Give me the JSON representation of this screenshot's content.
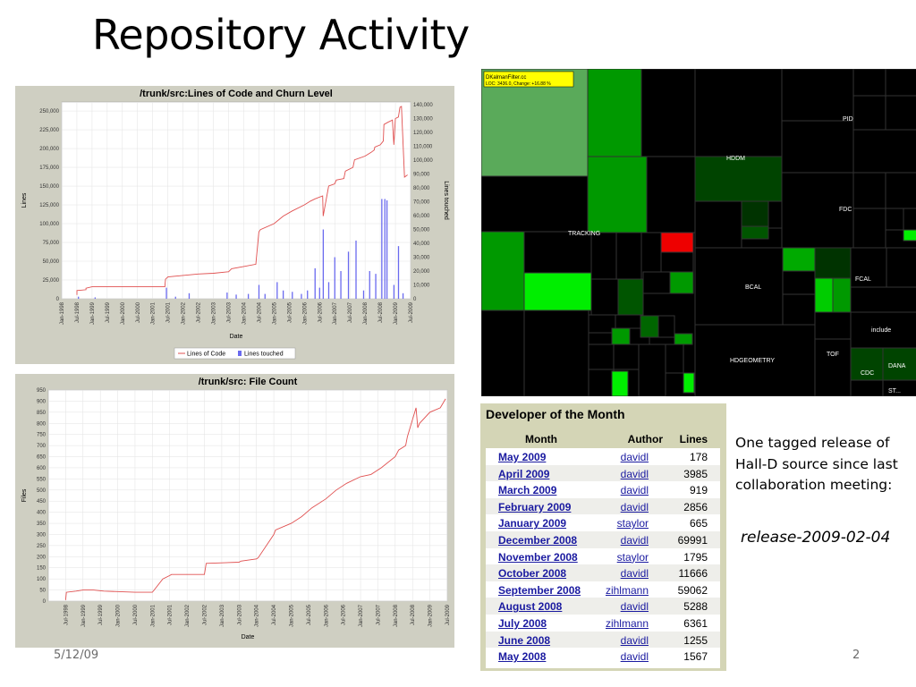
{
  "slide": {
    "title": "Repository Activity",
    "footer_date": "5/12/09",
    "page_number": "2",
    "note_text": "One tagged release of Hall-D source since last collaboration meeting:",
    "release_tag": "release-2009-02-04"
  },
  "colors": {
    "loc_line": "#e05050",
    "churn_bar": "#6a6aef",
    "treemap_green": "#00cc00",
    "treemap_red": "#ff0000",
    "link": "#1a1aa0"
  },
  "chart_data": [
    {
      "type": "line",
      "title": "/trunk/src:Lines of Code and Churn Level",
      "xlabel": "Date",
      "ylabel": "Lines",
      "ylabel_right": "Lines touched",
      "xlim": [
        1998.0,
        2009.5
      ],
      "ylim": [
        0,
        262000
      ],
      "ylim_right": [
        0,
        142000
      ],
      "y_ticks": [
        0,
        25000,
        50000,
        75000,
        100000,
        125000,
        150000,
        175000,
        200000,
        225000,
        250000
      ],
      "y_tick_labels": [
        "0",
        "25,000",
        "50,000",
        "75,000",
        "100,000",
        "125,000",
        "150,000",
        "175,000",
        "200,000",
        "225,000",
        "250,000"
      ],
      "y_right_ticks": [
        0,
        10000,
        20000,
        30000,
        40000,
        50000,
        60000,
        70000,
        80000,
        90000,
        100000,
        110000,
        120000,
        130000,
        140000
      ],
      "y_right_tick_labels": [
        "0",
        "10,000",
        "20,000",
        "30,000",
        "40,000",
        "50,000",
        "60,000",
        "70,000",
        "80,000",
        "90,000",
        "100,000",
        "110,000",
        "120,000",
        "130,000",
        "140,000"
      ],
      "x_ticks": [
        1998.0,
        1998.5,
        1999.0,
        1999.5,
        2000.0,
        2000.5,
        2001.0,
        2001.5,
        2002.0,
        2002.5,
        2003.0,
        2003.5,
        2004.0,
        2004.5,
        2005.0,
        2005.5,
        2006.0,
        2006.5,
        2007.0,
        2007.5,
        2008.0,
        2008.5,
        2009.0,
        2009.5
      ],
      "x_tick_labels": [
        "Jan-1998",
        "Jul-1998",
        "Jan-1999",
        "Jul-1999",
        "Jan-2000",
        "Jul-2000",
        "Jan-2001",
        "Jul-2001",
        "Jan-2002",
        "Jul-2002",
        "Jan-2003",
        "Jul-2003",
        "Jan-2004",
        "Jul-2004",
        "Jan-2005",
        "Jul-2005",
        "Jan-2006",
        "Jul-2006",
        "Jan-2007",
        "Jul-2007",
        "Jan-2008",
        "Jul-2008",
        "Jan-2009",
        "Jul-2009"
      ],
      "legend": [
        "Lines of Code",
        "Lines touched"
      ],
      "legend_position": "bottom",
      "grid": true,
      "series": [
        {
          "name": "Lines of Code",
          "x": [
            1998.5,
            1998.5,
            1998.8,
            1998.8,
            1999.0,
            1999.5,
            2000.5,
            2001.4,
            2001.42,
            2001.5,
            2002.5,
            2003.0,
            2003.5,
            2003.6,
            2004.0,
            2004.4,
            2004.5,
            2004.55,
            2005.0,
            2005.3,
            2005.6,
            2006.0,
            2006.2,
            2006.35,
            2006.6,
            2006.62,
            2006.8,
            2007.0,
            2007.05,
            2007.3,
            2007.35,
            2007.6,
            2007.65,
            2008.0,
            2008.2,
            2008.3,
            2008.32,
            2008.5,
            2008.6,
            2008.62,
            2008.75,
            2008.9,
            2008.95,
            2009.0,
            2009.1,
            2009.15,
            2009.2,
            2009.3,
            2009.4
          ],
          "y": [
            5000,
            11000,
            12000,
            14000,
            16000,
            16000,
            16000,
            16000,
            26000,
            29000,
            33000,
            34000,
            36000,
            40000,
            43000,
            46000,
            89000,
            92000,
            100000,
            110000,
            117000,
            125000,
            130000,
            133000,
            137000,
            110000,
            150000,
            153000,
            158000,
            160000,
            170000,
            175000,
            185000,
            190000,
            195000,
            198000,
            202000,
            205000,
            210000,
            232000,
            235000,
            238000,
            205000,
            240000,
            242000,
            255000,
            256000,
            162000,
            165000
          ]
        },
        {
          "name": "Lines touched",
          "type": "bar",
          "x": [
            1998.55,
            1999.1,
            2001.45,
            2001.75,
            2002.2,
            2003.45,
            2003.75,
            2004.15,
            2004.5,
            2004.7,
            2005.1,
            2005.3,
            2005.6,
            2005.9,
            2006.1,
            2006.35,
            2006.5,
            2006.62,
            2006.8,
            2007.0,
            2007.2,
            2007.45,
            2007.7,
            2007.95,
            2008.15,
            2008.35,
            2008.55,
            2008.65,
            2008.72,
            2008.95,
            2009.1,
            2009.25
          ],
          "y": [
            1500,
            1000,
            8000,
            1500,
            4000,
            4500,
            3000,
            3500,
            10000,
            3500,
            12000,
            6000,
            5000,
            3500,
            6000,
            22000,
            8000,
            50000,
            12000,
            30000,
            20000,
            34000,
            42000,
            6000,
            20000,
            18000,
            72000,
            72000,
            71000,
            10000,
            38000,
            4000
          ]
        }
      ]
    },
    {
      "type": "line",
      "title": "/trunk/src: File Count",
      "xlabel": "Date",
      "ylabel": "Files",
      "xlim": [
        1998.0,
        2009.5
      ],
      "ylim": [
        0,
        950
      ],
      "y_ticks": [
        0,
        50,
        100,
        150,
        200,
        250,
        300,
        350,
        400,
        450,
        500,
        550,
        600,
        650,
        700,
        750,
        800,
        850,
        900,
        950
      ],
      "y_tick_labels": [
        "0",
        "50",
        "100",
        "150",
        "200",
        "250",
        "300",
        "350",
        "400",
        "450",
        "500",
        "550",
        "600",
        "650",
        "700",
        "750",
        "800",
        "850",
        "900",
        "950"
      ],
      "x_ticks": [
        1998.5,
        1999.0,
        1999.5,
        2000.0,
        2000.5,
        2001.0,
        2001.5,
        2002.0,
        2002.5,
        2003.0,
        2003.5,
        2004.0,
        2004.5,
        2005.0,
        2005.5,
        2006.0,
        2006.5,
        2007.0,
        2007.5,
        2008.0,
        2008.5,
        2009.0,
        2009.5
      ],
      "x_tick_labels": [
        "Jul-1998",
        "Jan-1999",
        "Jul-1999",
        "Jan-2000",
        "Jul-2000",
        "Jan-2001",
        "Jul-2001",
        "Jan-2002",
        "Jul-2002",
        "Jan-2003",
        "Jul-2003",
        "Jan-2004",
        "Jul-2004",
        "Jan-2005",
        "Jul-2005",
        "Jan-2006",
        "Jul-2006",
        "Jan-2007",
        "Jul-2007",
        "Jan-2008",
        "Jul-2008",
        "Jan-2009",
        "Jul-2009"
      ],
      "grid": true,
      "series": [
        {
          "name": "Files",
          "x": [
            1998.5,
            1998.52,
            1998.8,
            1999.0,
            1999.3,
            1999.6,
            2000.5,
            2001.0,
            2001.05,
            2001.3,
            2001.5,
            2001.55,
            2002.5,
            2002.55,
            2003.5,
            2003.55,
            2004.0,
            2004.05,
            2004.5,
            2004.55,
            2005.0,
            2005.3,
            2005.6,
            2006.0,
            2006.3,
            2006.6,
            2007.0,
            2007.3,
            2007.6,
            2008.0,
            2008.1,
            2008.3,
            2008.35,
            2008.6,
            2008.65,
            2008.7,
            2009.0,
            2009.3,
            2009.45
          ],
          "y": [
            5,
            40,
            45,
            50,
            50,
            45,
            40,
            40,
            50,
            100,
            115,
            120,
            120,
            170,
            175,
            180,
            190,
            195,
            300,
            320,
            350,
            380,
            420,
            460,
            500,
            530,
            560,
            570,
            600,
            650,
            680,
            700,
            740,
            870,
            780,
            800,
            850,
            870,
            910
          ]
        }
      ]
    }
  ],
  "treemap": {
    "highlight_label": "DKalmanFilter.cc",
    "highlight_info": "LOC: 3436.0, Change: +16.88 %",
    "labels": [
      "PID",
      "HDDM",
      "FDC",
      "TRACKING",
      "FCAL",
      "BCAL",
      "include",
      "TOF",
      "HDGEOMETRY",
      "DANA",
      "CDC",
      "ST..."
    ]
  },
  "developer_of_month": {
    "title": "Developer of the Month",
    "headers": [
      "Month",
      "Author",
      "Lines"
    ],
    "rows": [
      {
        "month": "May 2009",
        "author": "davidl",
        "lines": "178"
      },
      {
        "month": "April 2009",
        "author": "davidl",
        "lines": "3985"
      },
      {
        "month": "March 2009",
        "author": "davidl",
        "lines": "919"
      },
      {
        "month": "February 2009",
        "author": "davidl",
        "lines": "2856"
      },
      {
        "month": "January 2009",
        "author": "staylor",
        "lines": "665"
      },
      {
        "month": "December 2008",
        "author": "davidl",
        "lines": "69991"
      },
      {
        "month": "November 2008",
        "author": "staylor",
        "lines": "1795"
      },
      {
        "month": "October 2008",
        "author": "davidl",
        "lines": "11666"
      },
      {
        "month": "September 2008",
        "author": "zihlmann",
        "lines": "59062"
      },
      {
        "month": "August 2008",
        "author": "davidl",
        "lines": "5288"
      },
      {
        "month": "July 2008",
        "author": "zihlmann",
        "lines": "6361"
      },
      {
        "month": "June 2008",
        "author": "davidl",
        "lines": "1255"
      },
      {
        "month": "May 2008",
        "author": "davidl",
        "lines": "1567"
      }
    ]
  }
}
